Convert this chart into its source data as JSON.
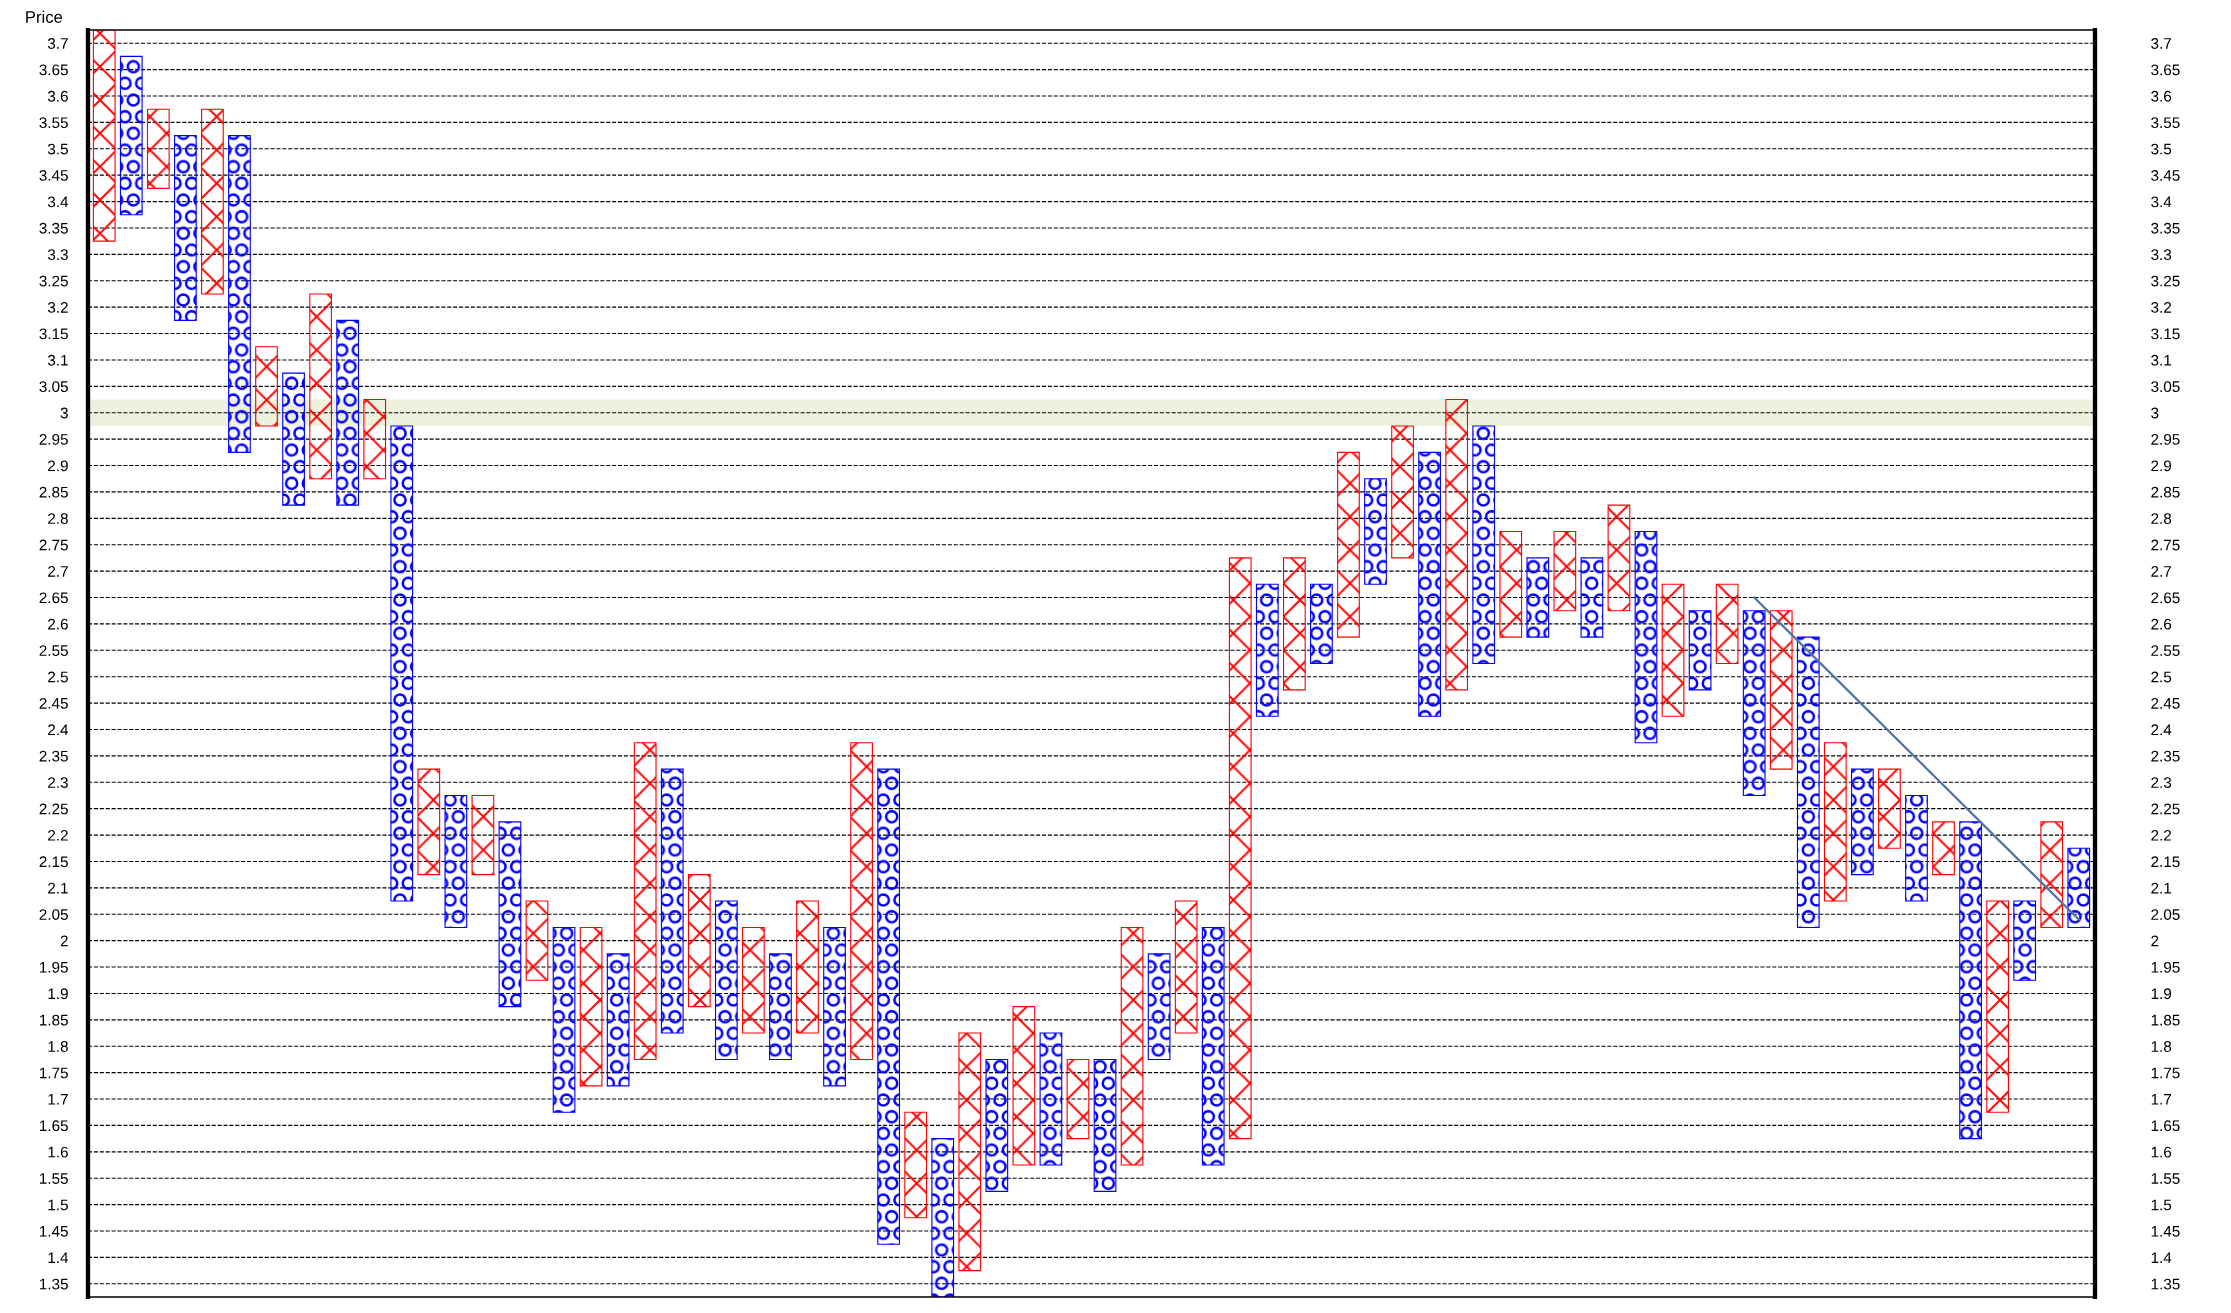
{
  "chart_data": {
    "type": "bar",
    "ylabel": "Price",
    "categories": [
      null,
      null,
      null,
      null,
      null,
      null,
      null,
      null,
      null,
      null,
      null,
      null,
      null,
      null,
      null,
      null,
      null,
      null,
      null,
      null,
      null,
      null,
      null,
      null,
      null,
      null,
      null,
      null,
      null,
      null,
      null,
      null,
      null,
      null,
      null,
      null,
      null,
      null,
      null,
      null,
      null,
      null,
      null,
      null,
      null,
      null,
      null,
      null,
      null,
      null,
      null,
      null,
      null,
      null,
      null,
      null,
      null,
      null,
      null,
      null,
      null,
      null,
      null,
      null,
      null,
      null,
      null,
      null,
      null,
      null,
      null,
      null,
      null,
      null
    ],
    "ylim": [
      1.325,
      3.725
    ],
    "yticks": [
      1.35,
      1.4,
      1.45,
      1.5,
      1.55,
      1.6,
      1.65,
      1.7,
      1.75,
      1.8,
      1.85,
      1.9,
      1.95,
      2,
      2.05,
      2.1,
      2.15,
      2.2,
      2.25,
      2.3,
      2.35,
      2.4,
      2.45,
      2.5,
      2.55,
      2.6,
      2.65,
      2.7,
      2.75,
      2.8,
      2.85,
      2.9,
      2.95,
      3,
      3.05,
      3.1,
      3.15,
      3.2,
      3.25,
      3.3,
      3.35,
      3.4,
      3.45,
      3.5,
      3.55,
      3.6,
      3.65,
      3.7
    ],
    "y2lim": [
      1.325,
      3.725
    ],
    "y2ticks": [
      1.35,
      1.4,
      1.45,
      1.5,
      1.55,
      1.6,
      1.65,
      1.7,
      1.75,
      1.8,
      1.85,
      1.9,
      1.95,
      2,
      2.05,
      2.1,
      2.15,
      2.2,
      2.25,
      2.3,
      2.35,
      2.4,
      2.45,
      2.5,
      2.55,
      2.6,
      2.65,
      2.7,
      2.75,
      2.8,
      2.85,
      2.9,
      2.95,
      3,
      3.05,
      3.1,
      3.15,
      3.2,
      3.25,
      3.3,
      3.35,
      3.4,
      3.45,
      3.5,
      3.55,
      3.6,
      3.65,
      3.7
    ],
    "grid": "y",
    "line_style": "dashed",
    "bands": [
      {
        "axis": "y",
        "from": 2.975,
        "to": 3.025,
        "color": "#eef1de"
      }
    ],
    "series": [
      {
        "marker": "cross",
        "color": "#ff0000",
        "base": [
          3.325,
          null,
          3.425,
          null,
          3.225,
          null,
          2.975,
          null,
          2.875,
          null,
          2.875,
          null,
          2.125,
          null,
          2.125,
          null,
          1.925,
          null,
          1.725,
          null,
          1.775,
          null,
          1.875,
          null,
          1.825,
          null,
          1.825,
          null,
          1.775,
          null,
          1.475,
          null,
          1.375,
          null,
          1.575,
          null,
          1.625,
          null,
          1.575,
          null,
          1.825,
          null,
          1.625,
          null,
          2.475,
          null,
          2.575,
          null,
          2.725,
          null,
          2.475,
          null,
          2.575,
          null,
          2.625,
          null,
          2.625,
          null,
          2.425,
          null,
          2.525,
          null,
          2.325,
          null,
          2.075,
          null,
          2.175,
          null,
          2.125,
          null,
          1.675,
          null,
          2.025,
          null
        ],
        "values": [
          0.4,
          null,
          0.15,
          null,
          0.35,
          null,
          0.15,
          null,
          0.35,
          null,
          0.15,
          null,
          0.2,
          null,
          0.15,
          null,
          0.15,
          null,
          0.3,
          null,
          0.6,
          null,
          0.25,
          null,
          0.2,
          null,
          0.25,
          null,
          0.6,
          null,
          0.2,
          null,
          0.45,
          null,
          0.3,
          null,
          0.15,
          null,
          0.45,
          null,
          0.25,
          null,
          1.1,
          null,
          0.25,
          null,
          0.35,
          null,
          0.25,
          null,
          0.55,
          null,
          0.2,
          null,
          0.15,
          null,
          0.2,
          null,
          0.25,
          null,
          0.15,
          null,
          0.3,
          null,
          0.3,
          null,
          0.15,
          null,
          0.1,
          null,
          0.4,
          null,
          0.2,
          null
        ]
      },
      {
        "marker": "circle",
        "color": "#0000ff",
        "base": [
          null,
          3.375,
          null,
          3.175,
          null,
          2.925,
          null,
          2.825,
          null,
          2.825,
          null,
          2.075,
          null,
          2.025,
          null,
          1.875,
          null,
          1.675,
          null,
          1.725,
          null,
          1.825,
          null,
          1.775,
          null,
          1.775,
          null,
          1.725,
          null,
          1.425,
          null,
          1.325,
          null,
          1.525,
          null,
          1.575,
          null,
          1.525,
          null,
          1.775,
          null,
          1.575,
          null,
          2.425,
          null,
          2.525,
          null,
          2.675,
          null,
          2.425,
          null,
          2.525,
          null,
          2.575,
          null,
          2.575,
          null,
          2.375,
          null,
          2.475,
          null,
          2.275,
          null,
          2.025,
          null,
          2.125,
          null,
          2.075,
          null,
          1.625,
          null,
          1.925,
          null,
          2.025
        ],
        "values": [
          null,
          0.3,
          null,
          0.35,
          null,
          0.6,
          null,
          0.25,
          null,
          0.35,
          null,
          0.9,
          null,
          0.25,
          null,
          0.35,
          null,
          0.35,
          null,
          0.25,
          null,
          0.5,
          null,
          0.3,
          null,
          0.2,
          null,
          0.3,
          null,
          0.9,
          null,
          0.3,
          null,
          0.25,
          null,
          0.25,
          null,
          0.25,
          null,
          0.2,
          null,
          0.45,
          null,
          0.25,
          null,
          0.15,
          null,
          0.2,
          null,
          0.5,
          null,
          0.45,
          null,
          0.15,
          null,
          0.15,
          null,
          0.4,
          null,
          0.15,
          null,
          0.35,
          null,
          0.55,
          null,
          0.2,
          null,
          0.2,
          null,
          0.6,
          null,
          0.15,
          null,
          0.15
        ]
      },
      {
        "type": "line",
        "line_style": "solid",
        "color": "#4f74a8",
        "values": [
          null,
          null,
          null,
          null,
          null,
          null,
          null,
          null,
          null,
          null,
          null,
          null,
          null,
          null,
          null,
          null,
          null,
          null,
          null,
          null,
          null,
          null,
          null,
          null,
          null,
          null,
          null,
          null,
          null,
          null,
          null,
          null,
          null,
          null,
          null,
          null,
          null,
          null,
          null,
          null,
          null,
          null,
          null,
          null,
          null,
          null,
          null,
          null,
          null,
          null,
          null,
          null,
          null,
          null,
          null,
          null,
          null,
          null,
          null,
          null,
          null,
          2.65,
          null,
          null,
          null,
          null,
          null,
          null,
          null,
          null,
          null,
          null,
          null,
          2.04
        ]
      }
    ]
  }
}
